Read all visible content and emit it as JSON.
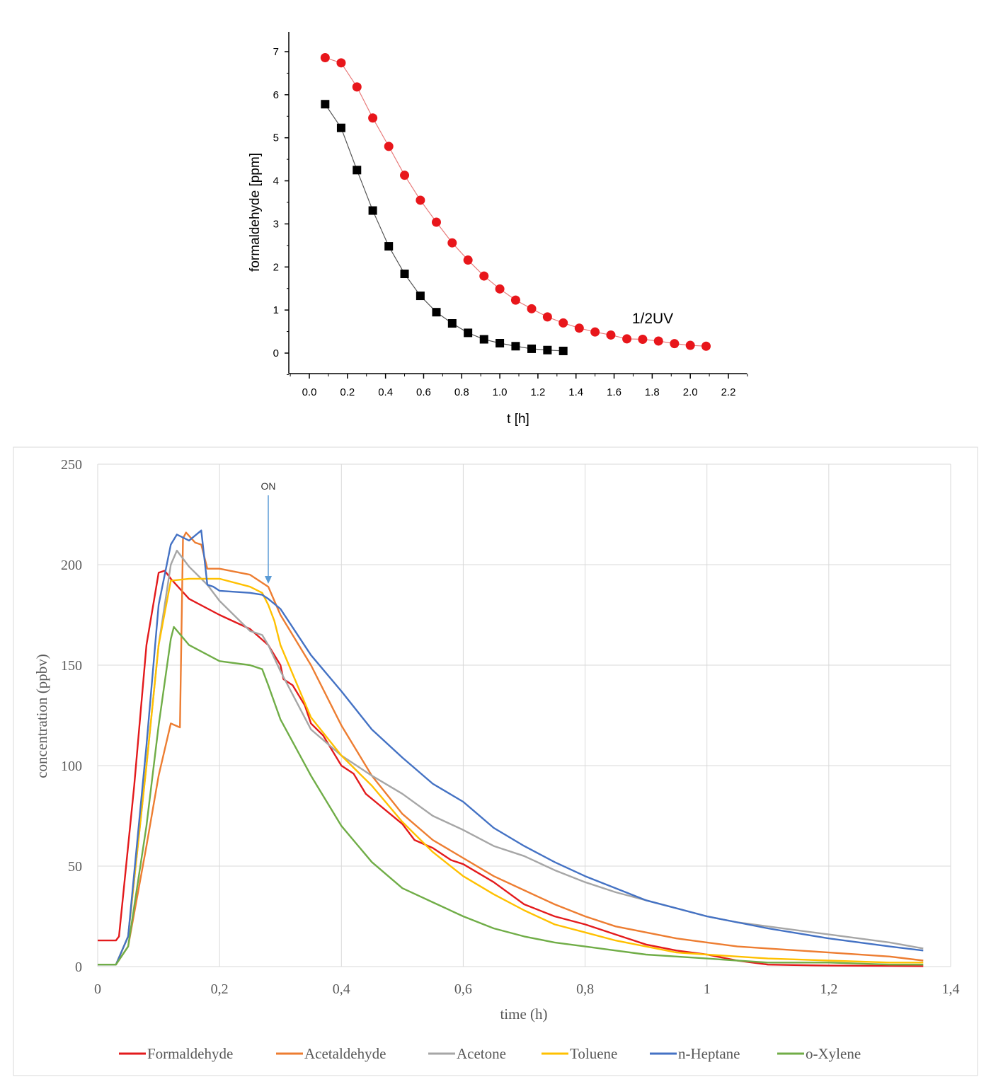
{
  "chart_data": [
    {
      "type": "scatter",
      "xlabel": "t [h]",
      "ylabel": "formaldehyde [ppm]",
      "xlim": [
        -0.1,
        2.3
      ],
      "ylim": [
        -0.5,
        7.5
      ],
      "xticks": [
        "0.0",
        "0.2",
        "0.4",
        "0.6",
        "0.8",
        "1.0",
        "1.2",
        "1.4",
        "1.6",
        "1.8",
        "2.0",
        "2.2"
      ],
      "yticks": [
        "0",
        "1",
        "2",
        "3",
        "4",
        "5",
        "6",
        "7"
      ],
      "annotation": "1/2UV",
      "grid": false,
      "series": [
        {
          "marker": "square",
          "color": "#000000",
          "x": [
            0.083,
            0.167,
            0.25,
            0.333,
            0.417,
            0.5,
            0.583,
            0.667,
            0.75,
            0.833,
            0.917,
            1.0,
            1.083,
            1.167,
            1.25,
            1.333
          ],
          "y": [
            5.78,
            5.23,
            4.25,
            3.31,
            2.48,
            1.84,
            1.33,
            0.95,
            0.69,
            0.47,
            0.32,
            0.23,
            0.16,
            0.1,
            0.07,
            0.05
          ]
        },
        {
          "marker": "circle",
          "color": "#e8161b",
          "x": [
            0.083,
            0.167,
            0.25,
            0.333,
            0.417,
            0.5,
            0.583,
            0.667,
            0.75,
            0.833,
            0.917,
            1.0,
            1.083,
            1.167,
            1.25,
            1.333,
            1.417,
            1.5,
            1.583,
            1.667,
            1.75,
            1.833,
            1.917,
            2.0,
            2.083
          ],
          "y": [
            6.86,
            6.74,
            6.18,
            5.46,
            4.8,
            4.13,
            3.55,
            3.04,
            2.56,
            2.16,
            1.79,
            1.49,
            1.23,
            1.03,
            0.84,
            0.7,
            0.58,
            0.49,
            0.42,
            0.33,
            0.32,
            0.28,
            0.22,
            0.18,
            0.16
          ]
        }
      ]
    },
    {
      "type": "line",
      "xlabel": "time (h)",
      "ylabel": "concentration (ppbv)",
      "xlim": [
        0,
        1.4
      ],
      "ylim": [
        0,
        250
      ],
      "xticks": [
        "0",
        "0,2",
        "0,4",
        "0,6",
        "0,8",
        "1",
        "1,2",
        "1,4"
      ],
      "yticks": [
        "0",
        "50",
        "100",
        "150",
        "200",
        "250"
      ],
      "grid": true,
      "legend_position": "bottom",
      "annotation": {
        "text": "ON",
        "x": 0.28,
        "color": "#5b9bd5"
      },
      "series": [
        {
          "name": "Formaldehyde",
          "color": "#e31a1c",
          "x": [
            0,
            0.03,
            0.035,
            0.06,
            0.08,
            0.1,
            0.11,
            0.12,
            0.15,
            0.2,
            0.25,
            0.28,
            0.3,
            0.305,
            0.32,
            0.34,
            0.35,
            0.37,
            0.38,
            0.4,
            0.42,
            0.44,
            0.46,
            0.48,
            0.5,
            0.52,
            0.55,
            0.58,
            0.6,
            0.65,
            0.7,
            0.75,
            0.8,
            0.85,
            0.9,
            0.95,
            1.0,
            1.05,
            1.1,
            1.2,
            1.3,
            1.355
          ],
          "y": [
            13,
            13,
            15,
            90,
            160,
            196,
            197,
            193,
            183,
            175,
            168,
            160,
            150,
            143,
            140,
            130,
            121,
            115,
            110,
            100,
            96,
            86,
            81,
            76,
            71,
            63,
            59,
            53,
            51,
            42,
            31,
            25,
            21,
            16,
            11,
            8,
            6,
            3,
            1,
            0.5,
            0.3,
            0.2
          ]
        },
        {
          "name": "Acetaldehyde",
          "color": "#ed7d31",
          "x": [
            0,
            0.03,
            0.05,
            0.08,
            0.1,
            0.12,
            0.135,
            0.14,
            0.145,
            0.16,
            0.17,
            0.18,
            0.2,
            0.25,
            0.28,
            0.3,
            0.35,
            0.4,
            0.45,
            0.5,
            0.55,
            0.6,
            0.65,
            0.7,
            0.75,
            0.8,
            0.85,
            0.9,
            0.95,
            1.0,
            1.05,
            1.1,
            1.2,
            1.3,
            1.355
          ],
          "y": [
            1,
            1,
            10,
            60,
            95,
            121,
            119,
            213,
            216,
            211,
            210,
            198,
            198,
            195,
            189,
            175,
            150,
            120,
            95,
            76,
            63,
            54,
            45,
            38,
            31,
            25,
            20,
            17,
            14,
            12,
            10,
            9,
            7,
            5,
            3
          ]
        },
        {
          "name": "Acetone",
          "color": "#a6a6a6",
          "x": [
            0,
            0.03,
            0.05,
            0.08,
            0.1,
            0.12,
            0.13,
            0.15,
            0.18,
            0.2,
            0.25,
            0.27,
            0.28,
            0.3,
            0.35,
            0.4,
            0.45,
            0.5,
            0.55,
            0.6,
            0.65,
            0.7,
            0.75,
            0.8,
            0.85,
            0.9,
            0.95,
            1.0,
            1.05,
            1.1,
            1.2,
            1.3,
            1.355
          ],
          "y": [
            1,
            1,
            15,
            100,
            160,
            200,
            207,
            199,
            190,
            182,
            167,
            165,
            160,
            147,
            118,
            105,
            95,
            86,
            75,
            68,
            60,
            55,
            48,
            42,
            37,
            33,
            29,
            25,
            22,
            20,
            16,
            12,
            9
          ]
        },
        {
          "name": "Toluene",
          "color": "#ffc000",
          "x": [
            0,
            0.03,
            0.05,
            0.08,
            0.1,
            0.12,
            0.15,
            0.2,
            0.25,
            0.27,
            0.28,
            0.29,
            0.3,
            0.35,
            0.4,
            0.45,
            0.5,
            0.55,
            0.6,
            0.65,
            0.7,
            0.75,
            0.8,
            0.85,
            0.9,
            0.95,
            1.0,
            1.05,
            1.1,
            1.2,
            1.3,
            1.355
          ],
          "y": [
            1,
            1,
            15,
            100,
            160,
            192,
            193,
            193,
            189,
            186,
            180,
            172,
            160,
            124,
            105,
            90,
            72,
            57,
            45,
            36,
            28,
            21,
            17,
            13,
            10,
            7,
            6,
            5,
            4,
            3,
            2,
            2
          ]
        },
        {
          "name": "n-Heptane",
          "color": "#4472c4",
          "x": [
            0,
            0.03,
            0.05,
            0.08,
            0.1,
            0.12,
            0.13,
            0.15,
            0.17,
            0.18,
            0.19,
            0.2,
            0.25,
            0.27,
            0.28,
            0.3,
            0.35,
            0.4,
            0.45,
            0.5,
            0.55,
            0.6,
            0.65,
            0.7,
            0.75,
            0.8,
            0.85,
            0.9,
            0.95,
            1.0,
            1.05,
            1.1,
            1.2,
            1.3,
            1.355
          ],
          "y": [
            1,
            1,
            15,
            110,
            180,
            210,
            215,
            212,
            217,
            190,
            189,
            187,
            186,
            185,
            183,
            178,
            155,
            137,
            118,
            104,
            91,
            82,
            69,
            60,
            52,
            45,
            39,
            33,
            29,
            25,
            22,
            19,
            14,
            10,
            8
          ]
        },
        {
          "name": "o-Xylene",
          "color": "#70ad47",
          "x": [
            0,
            0.03,
            0.05,
            0.08,
            0.1,
            0.12,
            0.125,
            0.15,
            0.2,
            0.25,
            0.27,
            0.28,
            0.3,
            0.35,
            0.4,
            0.45,
            0.5,
            0.55,
            0.6,
            0.65,
            0.7,
            0.75,
            0.8,
            0.85,
            0.9,
            0.95,
            1.0,
            1.05,
            1.1,
            1.2,
            1.3,
            1.355
          ],
          "y": [
            1,
            1,
            10,
            70,
            120,
            163,
            169,
            160,
            152,
            150,
            148,
            140,
            123,
            95,
            70,
            52,
            39,
            32,
            25,
            19,
            15,
            12,
            10,
            8,
            6,
            5,
            4,
            3,
            2,
            2,
            1,
            1
          ]
        }
      ]
    }
  ]
}
